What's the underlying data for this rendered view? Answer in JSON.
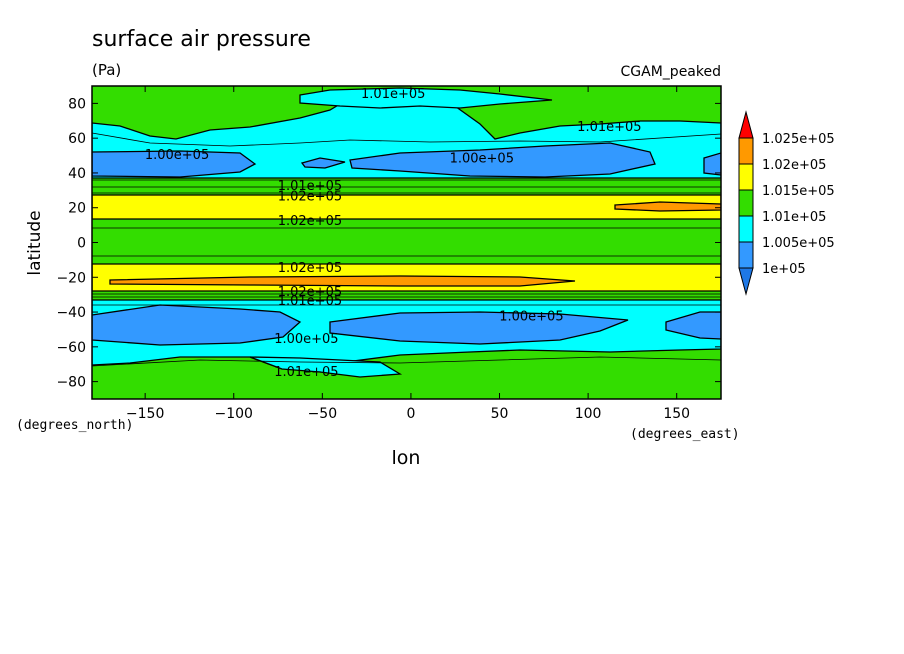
{
  "chart_data": {
    "type": "heatmap",
    "title": "surface air pressure",
    "units": "(Pa)",
    "dataset": "CGAM_peaked",
    "xlabel": "lon",
    "ylabel": "latitude",
    "x_units": "(degrees_east)",
    "y_units": "(degrees_north)",
    "xlim": [
      -180,
      175
    ],
    "ylim": [
      -90,
      90
    ],
    "x_ticks": [
      -150,
      -100,
      -50,
      0,
      50,
      100,
      150
    ],
    "y_ticks": [
      -80,
      -60,
      -40,
      -20,
      0,
      20,
      40,
      60,
      80
    ],
    "x_tick_labels": [
      "−150",
      "−100",
      "−50",
      "0",
      "50",
      "100",
      "150"
    ],
    "y_tick_labels": [
      "−80",
      "−60",
      "−40",
      "−20",
      "0",
      "20",
      "40",
      "60",
      "80"
    ],
    "colorbar": {
      "levels": [
        100000,
        100500,
        101000,
        101500,
        102000,
        102500
      ],
      "labels": [
        "1e+05",
        "1.005e+05",
        "1.01e+05",
        "1.015e+05",
        "1.02e+05",
        "1.025e+05"
      ],
      "colors": [
        "#3399ff",
        "#00ffff",
        "#33dd00",
        "#ffff00",
        "#ff9900",
        "#ff0000"
      ],
      "under_color": "#1e78e6",
      "over_color": "#ff0000"
    },
    "contour_labels": [
      {
        "text": "1.01e+05",
        "lon": -10,
        "lat": 86
      },
      {
        "text": "1.01e+05",
        "lon": 112,
        "lat": 67
      },
      {
        "text": "1.00e+05",
        "lon": -132,
        "lat": 51
      },
      {
        "text": "1.00e+05",
        "lon": 40,
        "lat": 49
      },
      {
        "text": "1.01e+05",
        "lon": -57,
        "lat": 33
      },
      {
        "text": "1.02e+05",
        "lon": -57,
        "lat": 27
      },
      {
        "text": "1.02e+05",
        "lon": -57,
        "lat": 13
      },
      {
        "text": "1.02e+05",
        "lon": -57,
        "lat": -14
      },
      {
        "text": "1.02e+05",
        "lon": -57,
        "lat": -28
      },
      {
        "text": "1.01e+05",
        "lon": -57,
        "lat": -33
      },
      {
        "text": "1.00e+05",
        "lon": 68,
        "lat": -42
      },
      {
        "text": "1.00e+05",
        "lon": -59,
        "lat": -55
      },
      {
        "text": "1.01e+05",
        "lon": -59,
        "lat": -74
      }
    ]
  }
}
